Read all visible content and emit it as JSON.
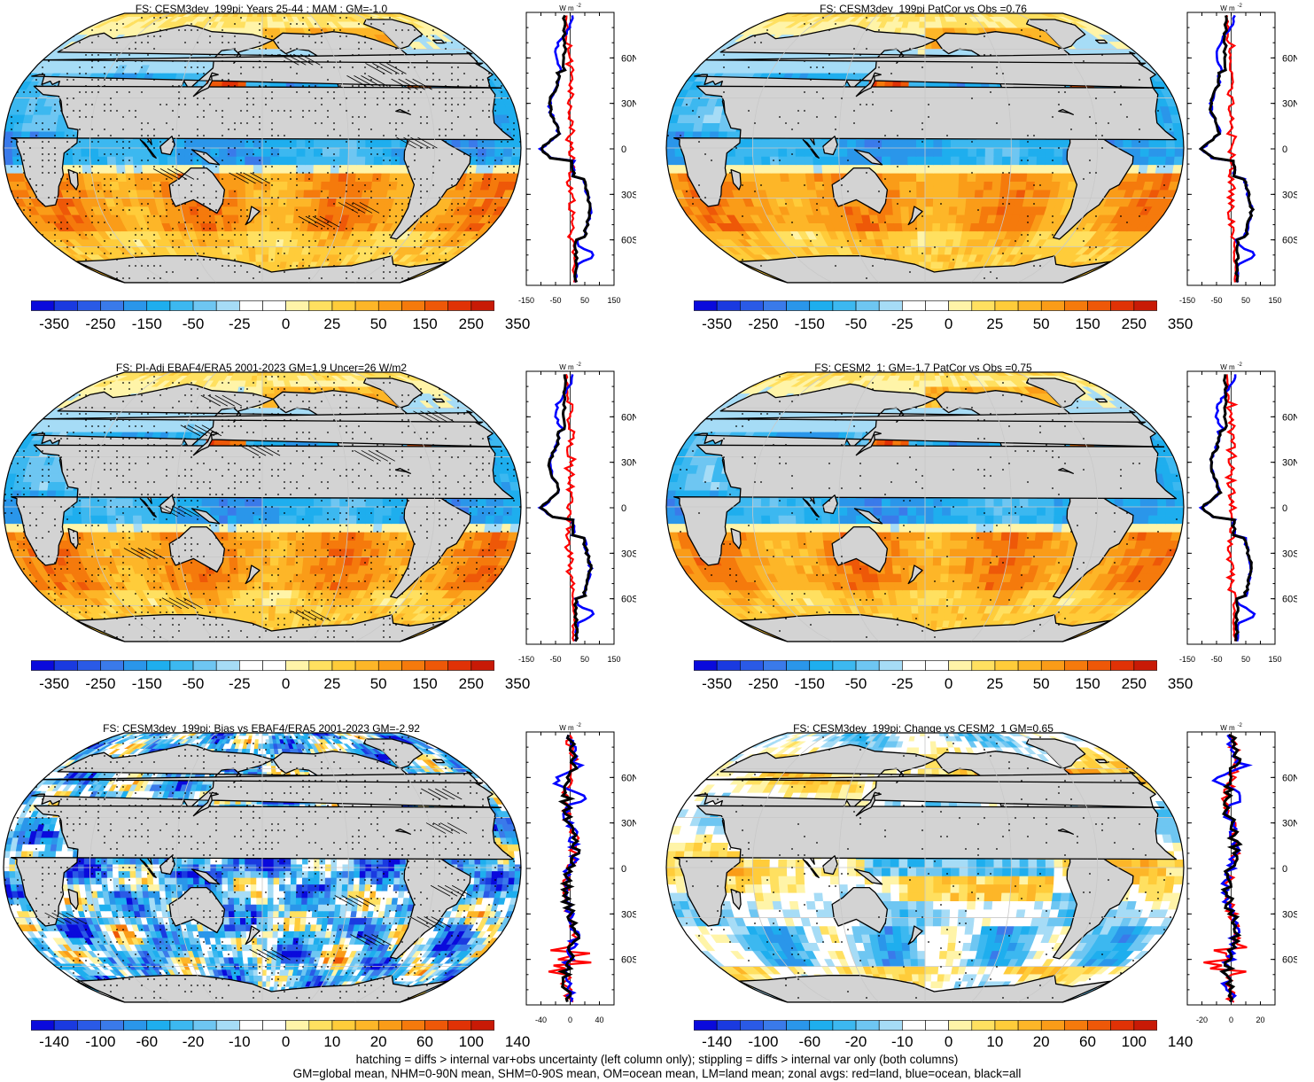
{
  "panels": [
    {
      "title": "FS: CESM3dev_199pi: Years 25-44 : MAM : GM=-1.0",
      "scale": "big",
      "stipple": true,
      "hatch": true,
      "variant": "model"
    },
    {
      "title": "FS: CESM3dev_199pi PatCor vs Obs =0.76",
      "scale": "big",
      "stipple": true,
      "hatch": false,
      "variant": "model"
    },
    {
      "title": "FS: PI-Adj EBAF4/ERA5 2001-2023 GM=1.9 Uncer=26 W/m2",
      "scale": "big",
      "stipple": true,
      "hatch": true,
      "variant": "obs"
    },
    {
      "title": "FS: CESM2_1: GM=-1.7 PatCor vs Obs =0.75",
      "scale": "big",
      "stipple": true,
      "hatch": false,
      "variant": "model"
    },
    {
      "title": "FS: CESM3dev_199pi: Bias vs EBAF4/ERA5 2001-2023 GM=-2.92",
      "scale": "small",
      "stipple": true,
      "hatch": true,
      "variant": "bias"
    },
    {
      "title": "FS: CESM3dev_199pi: Change vs CESM2_1 GM=0.65",
      "scale": "small",
      "stipple": true,
      "hatch": false,
      "variant": "change"
    }
  ],
  "colorbar": {
    "colors": [
      "#0a0adc",
      "#1a3ae0",
      "#2a5ae6",
      "#3a7aea",
      "#2a96ea",
      "#1eaeee",
      "#3cb8f0",
      "#6ec6f2",
      "#a6dcf6",
      "#ffffff",
      "#ffffff",
      "#fff4a8",
      "#ffe060",
      "#ffcc3a",
      "#fdb628",
      "#fa9c18",
      "#f57a0c",
      "#ee5808",
      "#e03206",
      "#c81a06"
    ],
    "labels_big": [
      "-350",
      "-250",
      "-150",
      "-50",
      "-25",
      "0",
      "25",
      "50",
      "150",
      "250",
      "350"
    ],
    "labels_small": [
      "-140",
      "-100",
      "-60",
      "-20",
      "-10",
      "0",
      "10",
      "20",
      "60",
      "100",
      "140"
    ]
  },
  "zonal": {
    "unit": "W m",
    "unit_exp": "-2",
    "lat_labels": [
      "60N",
      "30N",
      "0",
      "30S",
      "60S"
    ],
    "xticks_big": [
      "-150",
      "-50",
      "50",
      "150"
    ],
    "xticks_small": [
      "-40",
      "0",
      "40"
    ],
    "xticks_small_right": [
      "-20",
      "0",
      "20"
    ],
    "colors": {
      "land": "#ff0000",
      "ocean": "#0000ff",
      "all": "#000000"
    }
  },
  "footer": {
    "line1": "hatching = diffs > internal var+obs uncertainty (left column only); stippling = diffs > internal var only (both columns)",
    "line2": "GM=global mean, NHM=0-90N mean, SHM=0-90S mean, OM=ocean mean, LM=land mean; zonal avgs: red=land, blue=ocean, black=all"
  }
}
